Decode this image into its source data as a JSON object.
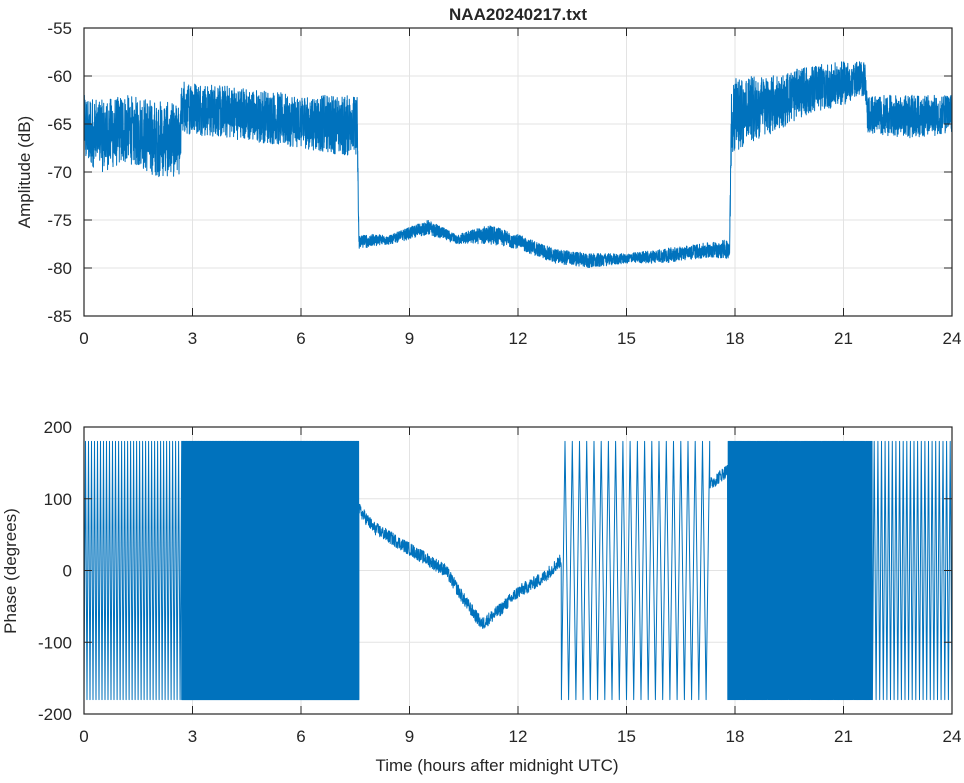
{
  "chart_data": [
    {
      "type": "line",
      "title": "NAA20240217.txt",
      "xlabel": "",
      "ylabel": "Amplitude (dB)",
      "xlim": [
        0,
        24
      ],
      "ylim": [
        -85,
        -55
      ],
      "xticks": [
        0,
        3,
        6,
        9,
        12,
        15,
        18,
        21,
        24
      ],
      "yticks": [
        -85,
        -80,
        -75,
        -70,
        -65,
        -60,
        -55
      ],
      "grid": true,
      "color": "#0072BD",
      "envelope_note": "noisy signal; [time_h, min_dB, max_dB]",
      "envelope": [
        [
          0,
          -69,
          -62
        ],
        [
          0.5,
          -70,
          -62.5
        ],
        [
          1.2,
          -69,
          -62
        ],
        [
          2,
          -70.5,
          -62.5
        ],
        [
          2.65,
          -70.5,
          -63
        ],
        [
          2.7,
          -66,
          -60.5
        ],
        [
          4,
          -66.5,
          -61
        ],
        [
          5,
          -67,
          -61.5
        ],
        [
          6,
          -67.5,
          -62
        ],
        [
          7.55,
          -68.5,
          -62
        ],
        [
          7.6,
          -78,
          -76.5
        ],
        [
          8.5,
          -77.5,
          -76.5
        ],
        [
          9.5,
          -76.5,
          -75
        ],
        [
          10.3,
          -77.5,
          -76.5
        ],
        [
          11.2,
          -77.5,
          -75.5
        ],
        [
          12,
          -78,
          -76.5
        ],
        [
          13,
          -79.5,
          -78
        ],
        [
          14,
          -80,
          -78.5
        ],
        [
          15,
          -79.5,
          -78.5
        ],
        [
          16,
          -79.5,
          -78
        ],
        [
          17,
          -79,
          -77.5
        ],
        [
          17.85,
          -79,
          -77
        ],
        [
          17.9,
          -68,
          -60
        ],
        [
          19,
          -66,
          -60
        ],
        [
          20,
          -64,
          -59
        ],
        [
          21,
          -63,
          -58.5
        ],
        [
          21.6,
          -62,
          -58.5
        ],
        [
          21.65,
          -66,
          -62
        ],
        [
          23,
          -66.5,
          -62
        ],
        [
          24,
          -66,
          -62
        ]
      ]
    },
    {
      "type": "line",
      "title": "",
      "xlabel": "Time (hours after midnight UTC)",
      "ylabel": "Phase (degrees)",
      "xlim": [
        0,
        24
      ],
      "ylim": [
        -200,
        200
      ],
      "xticks": [
        0,
        3,
        6,
        9,
        12,
        15,
        18,
        21,
        24
      ],
      "yticks": [
        -200,
        -100,
        0,
        100,
        200
      ],
      "grid": true,
      "color": "#0072BD",
      "wrap_range": [
        -180,
        180
      ],
      "segments": [
        {
          "kind": "wrapping",
          "from": 0,
          "to": 2.7,
          "cycles_per_hour": 12
        },
        {
          "kind": "wrapping",
          "from": 2.7,
          "to": 7.6,
          "cycles_per_hour": 60
        },
        {
          "kind": "trend",
          "points": [
            [
              7.6,
              85
            ],
            [
              8,
              60
            ],
            [
              9,
              30
            ],
            [
              10,
              0
            ],
            [
              10.5,
              -40
            ],
            [
              11,
              -75
            ],
            [
              11.5,
              -55
            ],
            [
              12,
              -30
            ],
            [
              12.7,
              -10
            ],
            [
              13.2,
              15
            ]
          ]
        },
        {
          "kind": "wrapping",
          "from": 13.2,
          "to": 17.3,
          "cycles_per_hour": 5
        },
        {
          "kind": "trend",
          "points": [
            [
              17.3,
              120
            ],
            [
              17.8,
              140
            ]
          ]
        },
        {
          "kind": "wrapping",
          "from": 17.8,
          "to": 21.8,
          "cycles_per_hour": 40
        },
        {
          "kind": "wrapping",
          "from": 21.8,
          "to": 24,
          "cycles_per_hour": 10
        }
      ]
    }
  ]
}
